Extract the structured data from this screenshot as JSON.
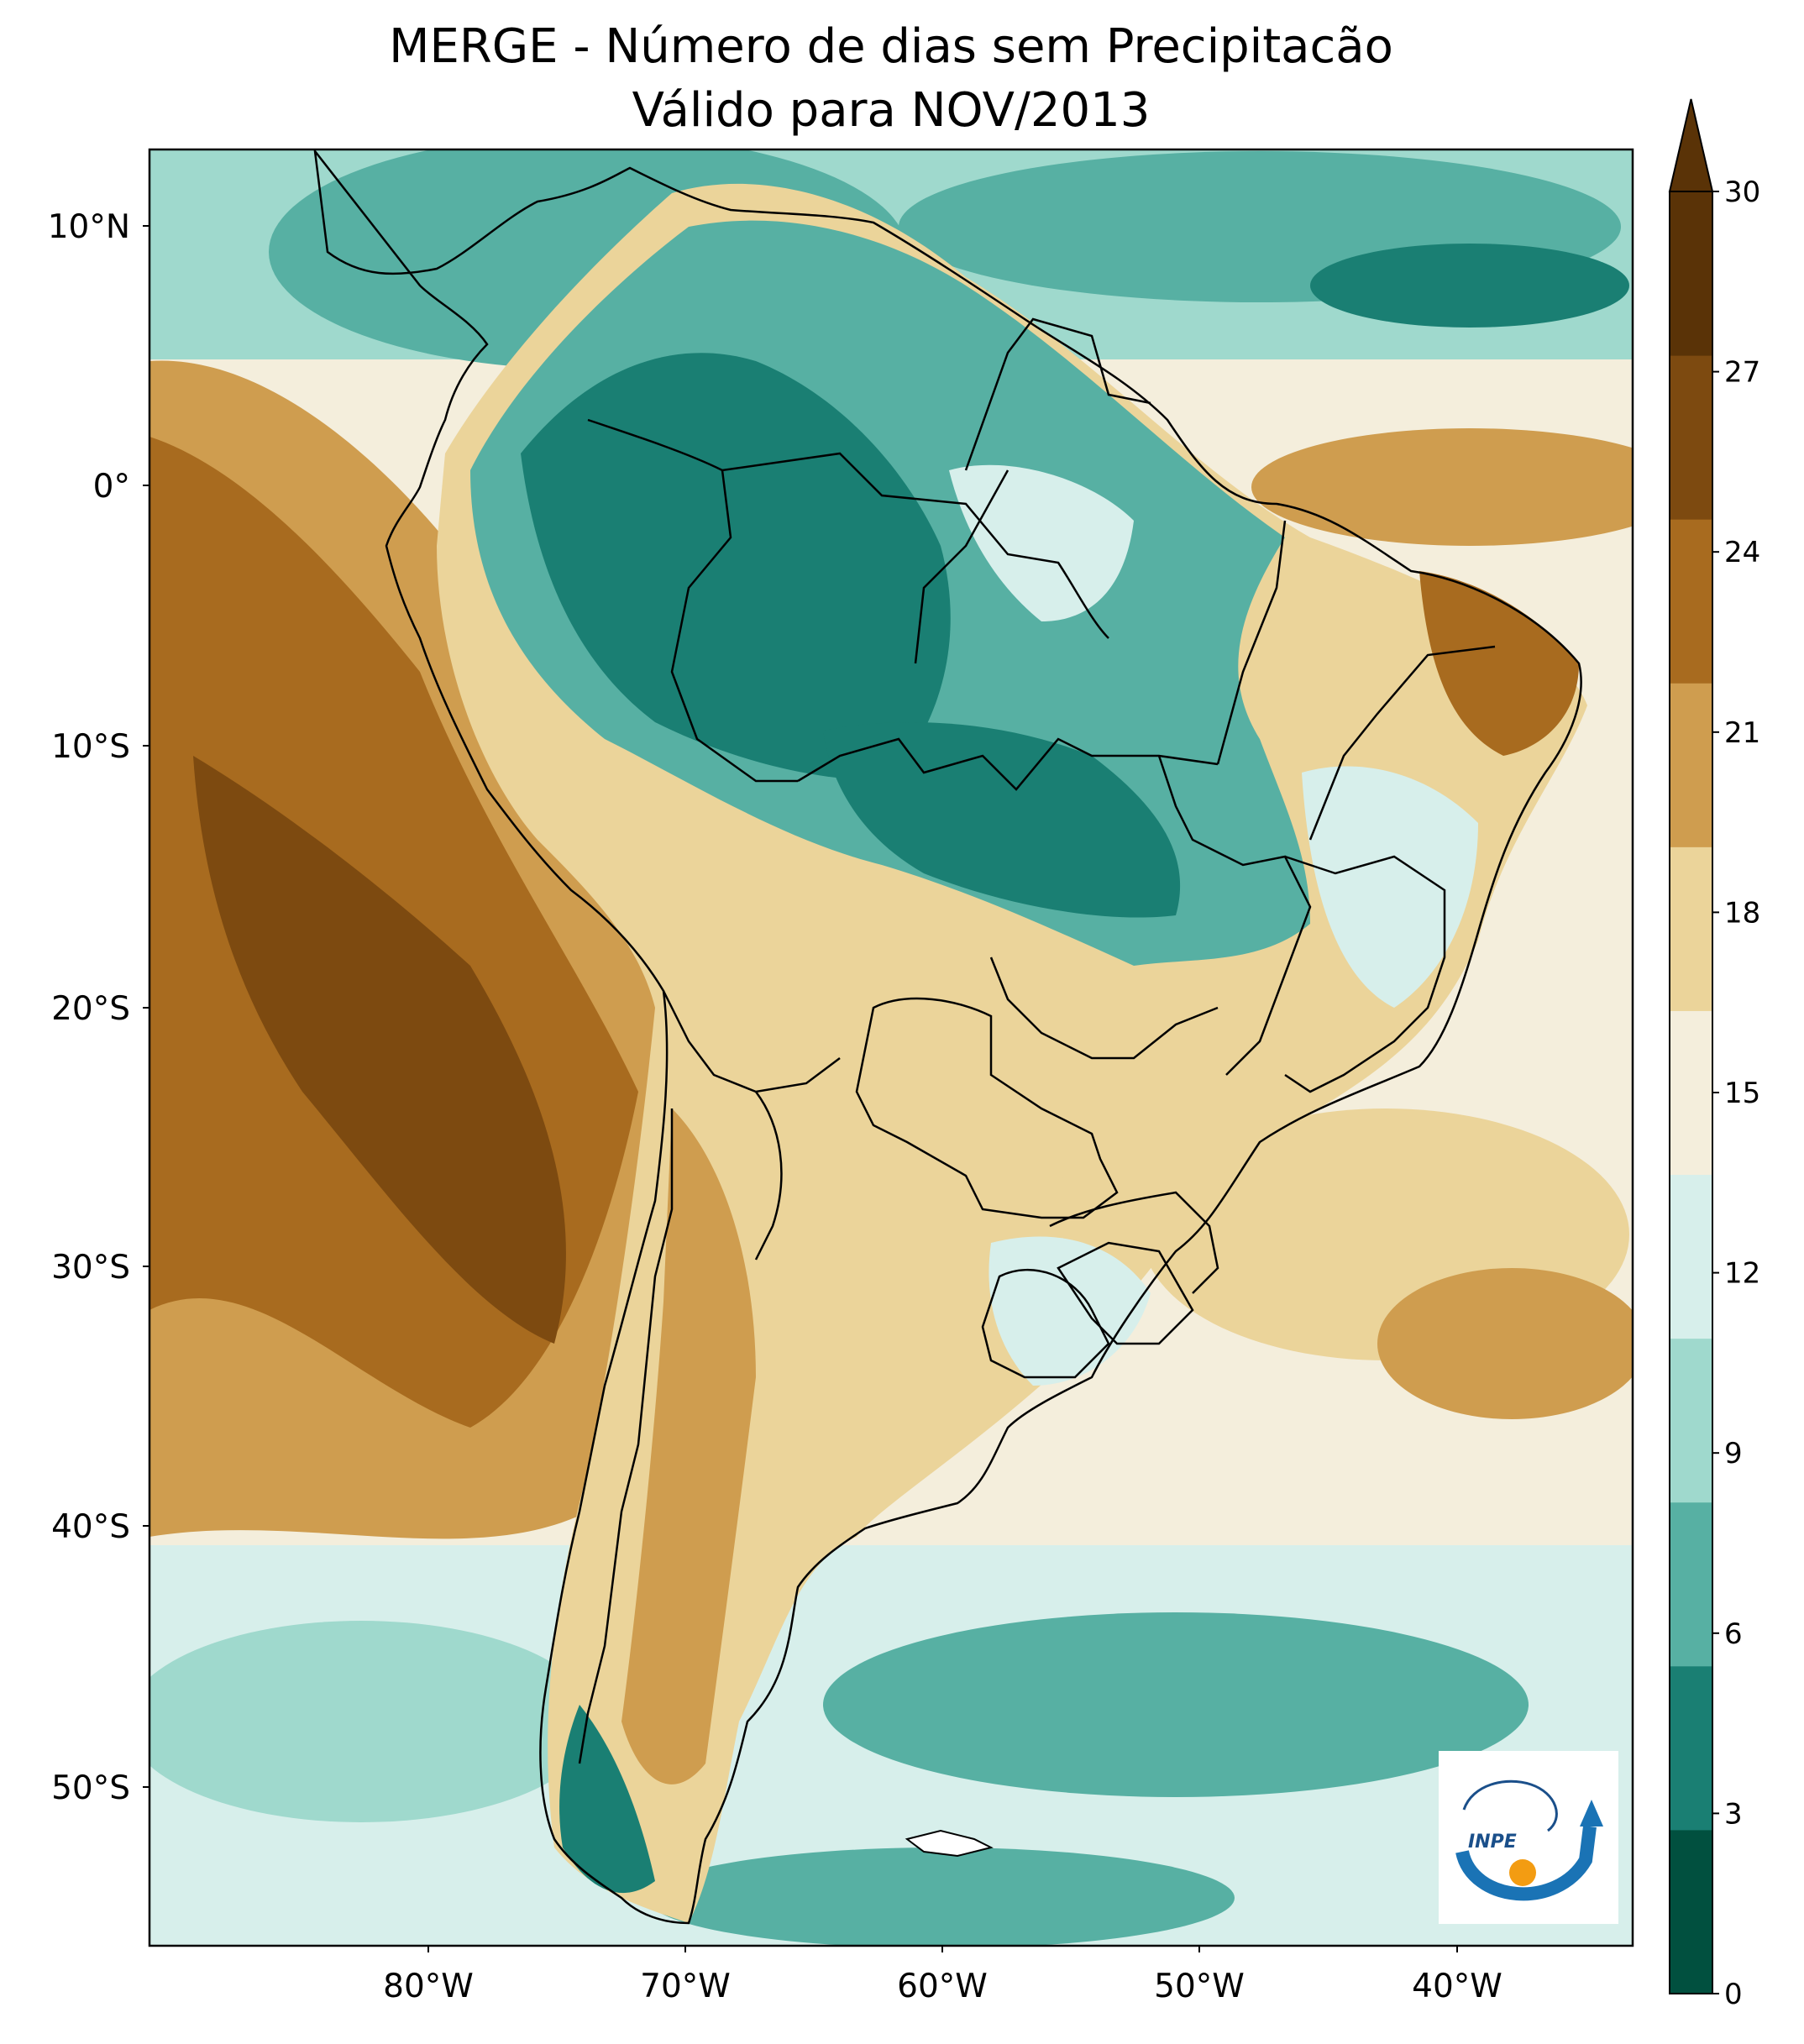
{
  "title_line1": "MERGE - Número de dias sem Precipitacão",
  "title_line2": "Válido para NOV/2013",
  "lat_ticks": [
    "10°N",
    "0°",
    "10°S",
    "20°S",
    "30°S",
    "40°S",
    "50°S"
  ],
  "lon_ticks": [
    "80°W",
    "70°W",
    "60°W",
    "50°W",
    "40°W"
  ],
  "colorbar": {
    "ticks": [
      "0",
      "3",
      "6",
      "9",
      "12",
      "15",
      "18",
      "21",
      "24",
      "27",
      "30"
    ],
    "colors": [
      "#01503f",
      "#1a7f73",
      "#57b0a3",
      "#9fd9cd",
      "#d7efeb",
      "#f4eedc",
      "#ebd49a",
      "#cf9d4f",
      "#a86b1f",
      "#7d4a10",
      "#5a3307"
    ],
    "extend": "max"
  },
  "logo_text": "INPE"
}
